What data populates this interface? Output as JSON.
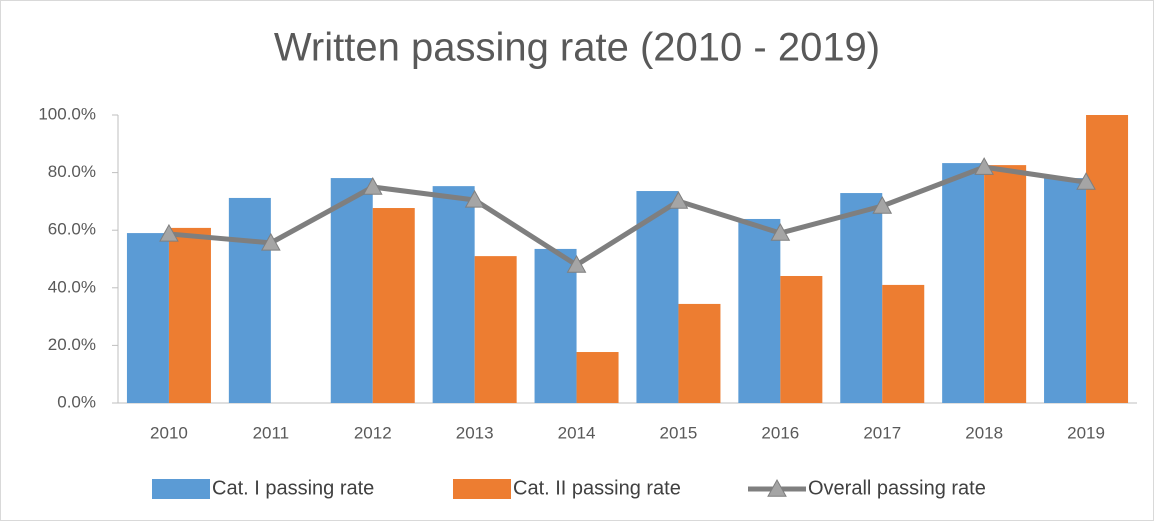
{
  "chart_data": {
    "type": "bar",
    "title": "Written passing rate (2010 - 2019)",
    "categories": [
      "2010",
      "2011",
      "2012",
      "2013",
      "2014",
      "2015",
      "2016",
      "2017",
      "2018",
      "2019"
    ],
    "series": [
      {
        "name": "Cat. I passing rate",
        "type": "bar",
        "color": "#5b9bd5",
        "values": [
          59.0,
          71.2,
          78.1,
          75.3,
          53.5,
          73.6,
          63.9,
          72.9,
          83.3,
          78.1
        ]
      },
      {
        "name": "Cat. II passing rate",
        "type": "bar",
        "color": "#ed7d31",
        "values": [
          60.8,
          null,
          67.7,
          51.0,
          17.7,
          34.4,
          44.1,
          41.0,
          82.6,
          100
        ]
      },
      {
        "name": "Overall passing rate",
        "type": "line",
        "color": "#7f7f7f",
        "marker": "triangle",
        "values": [
          58.7,
          55.6,
          75.0,
          70.5,
          47.9,
          70.1,
          59.0,
          68.4,
          81.9,
          76.7
        ]
      }
    ],
    "ylim": [
      0,
      100
    ],
    "yticks": [
      {
        "value": 0,
        "label": "0.0%"
      },
      {
        "value": 20,
        "label": "20.0%"
      },
      {
        "value": 40,
        "label": "40.0%"
      },
      {
        "value": 60,
        "label": "60.0%"
      },
      {
        "value": 80,
        "label": "80.0%"
      },
      {
        "value": 100,
        "label": "100.0%"
      }
    ],
    "legend": "bottom"
  }
}
